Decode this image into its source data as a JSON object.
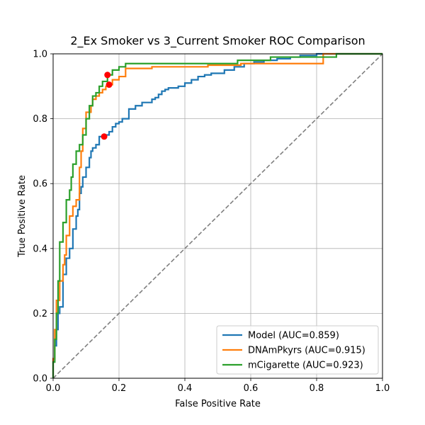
{
  "chart_data": {
    "type": "line",
    "title": "2_Ex Smoker vs 3_Current Smoker ROC Comparison",
    "xlabel": "False Positive Rate",
    "ylabel": "True Positive Rate",
    "xlim": [
      0.0,
      1.0
    ],
    "ylim": [
      0.0,
      1.0
    ],
    "xticks": [
      "0.0",
      "0.2",
      "0.4",
      "0.6",
      "0.8",
      "1.0"
    ],
    "yticks": [
      "0.0",
      "0.2",
      "0.4",
      "0.6",
      "0.8",
      "1.0"
    ],
    "tick_values": [
      0.0,
      0.2,
      0.4,
      0.6,
      0.8,
      1.0
    ],
    "grid": true,
    "legend_position": "lower-right",
    "diagonal": {
      "x": [
        0,
        1
      ],
      "y": [
        0,
        1
      ],
      "color": "#7f7f7f",
      "style": "dashed"
    },
    "series": [
      {
        "name": "Model (AUC=0.859)",
        "color": "#1f77b4",
        "x": [
          0,
          0,
          0.005,
          0.005,
          0.01,
          0.01,
          0.015,
          0.015,
          0.02,
          0.02,
          0.03,
          0.03,
          0.04,
          0.04,
          0.05,
          0.05,
          0.06,
          0.06,
          0.07,
          0.07,
          0.075,
          0.075,
          0.08,
          0.08,
          0.085,
          0.085,
          0.09,
          0.09,
          0.1,
          0.1,
          0.11,
          0.11,
          0.115,
          0.115,
          0.12,
          0.12,
          0.13,
          0.13,
          0.14,
          0.14,
          0.155,
          0.155,
          0.17,
          0.17,
          0.18,
          0.18,
          0.19,
          0.19,
          0.2,
          0.2,
          0.21,
          0.21,
          0.23,
          0.23,
          0.25,
          0.25,
          0.27,
          0.27,
          0.3,
          0.3,
          0.31,
          0.31,
          0.32,
          0.32,
          0.33,
          0.33,
          0.34,
          0.34,
          0.35,
          0.35,
          0.38,
          0.38,
          0.4,
          0.4,
          0.42,
          0.42,
          0.44,
          0.44,
          0.46,
          0.46,
          0.48,
          0.48,
          0.52,
          0.52,
          0.55,
          0.55,
          0.58,
          0.58,
          0.61,
          0.61,
          0.64,
          0.64,
          0.68,
          0.68,
          0.72,
          0.72,
          0.75,
          0.75,
          0.8,
          0.8,
          1.0
        ],
        "y": [
          0,
          0.06,
          0.06,
          0.1,
          0.1,
          0.15,
          0.15,
          0.2,
          0.2,
          0.22,
          0.22,
          0.32,
          0.32,
          0.37,
          0.37,
          0.4,
          0.4,
          0.46,
          0.46,
          0.5,
          0.5,
          0.52,
          0.52,
          0.57,
          0.57,
          0.59,
          0.59,
          0.62,
          0.62,
          0.65,
          0.65,
          0.68,
          0.68,
          0.7,
          0.7,
          0.71,
          0.71,
          0.72,
          0.72,
          0.745,
          0.745,
          0.75,
          0.75,
          0.76,
          0.76,
          0.775,
          0.775,
          0.785,
          0.785,
          0.79,
          0.79,
          0.8,
          0.8,
          0.83,
          0.83,
          0.84,
          0.84,
          0.85,
          0.85,
          0.86,
          0.86,
          0.865,
          0.865,
          0.875,
          0.875,
          0.885,
          0.885,
          0.89,
          0.89,
          0.895,
          0.895,
          0.9,
          0.9,
          0.91,
          0.91,
          0.92,
          0.92,
          0.93,
          0.93,
          0.935,
          0.935,
          0.94,
          0.94,
          0.95,
          0.95,
          0.96,
          0.96,
          0.97,
          0.97,
          0.975,
          0.975,
          0.98,
          0.98,
          0.985,
          0.985,
          0.99,
          0.99,
          0.995,
          0.995,
          1.0,
          1.0
        ]
      },
      {
        "name": "DNAmPkyrs (AUC=0.915)",
        "color": "#ff7f0e",
        "x": [
          0,
          0,
          0.005,
          0.005,
          0.01,
          0.01,
          0.02,
          0.02,
          0.03,
          0.03,
          0.035,
          0.035,
          0.04,
          0.04,
          0.05,
          0.05,
          0.06,
          0.06,
          0.07,
          0.07,
          0.08,
          0.08,
          0.085,
          0.085,
          0.09,
          0.09,
          0.1,
          0.1,
          0.115,
          0.115,
          0.12,
          0.12,
          0.13,
          0.13,
          0.14,
          0.14,
          0.15,
          0.15,
          0.16,
          0.16,
          0.17,
          0.17,
          0.18,
          0.18,
          0.2,
          0.2,
          0.22,
          0.22,
          0.3,
          0.3,
          0.47,
          0.47,
          0.57,
          0.57,
          0.82,
          0.82,
          1.0
        ],
        "y": [
          0,
          0.06,
          0.06,
          0.15,
          0.15,
          0.24,
          0.24,
          0.3,
          0.3,
          0.35,
          0.35,
          0.38,
          0.38,
          0.44,
          0.44,
          0.5,
          0.5,
          0.53,
          0.53,
          0.55,
          0.55,
          0.65,
          0.65,
          0.7,
          0.7,
          0.77,
          0.77,
          0.82,
          0.82,
          0.84,
          0.84,
          0.86,
          0.86,
          0.87,
          0.87,
          0.88,
          0.88,
          0.89,
          0.89,
          0.9,
          0.9,
          0.905,
          0.905,
          0.92,
          0.92,
          0.93,
          0.93,
          0.955,
          0.955,
          0.96,
          0.96,
          0.965,
          0.965,
          0.97,
          0.97,
          1.0,
          1.0
        ]
      },
      {
        "name": "mCigarette (AUC=0.923)",
        "color": "#2ca02c",
        "x": [
          0,
          0,
          0.005,
          0.005,
          0.01,
          0.01,
          0.015,
          0.015,
          0.02,
          0.02,
          0.03,
          0.03,
          0.04,
          0.04,
          0.05,
          0.05,
          0.055,
          0.055,
          0.06,
          0.06,
          0.07,
          0.07,
          0.08,
          0.08,
          0.09,
          0.09,
          0.1,
          0.1,
          0.11,
          0.11,
          0.12,
          0.12,
          0.13,
          0.13,
          0.14,
          0.14,
          0.15,
          0.15,
          0.165,
          0.165,
          0.18,
          0.18,
          0.2,
          0.2,
          0.22,
          0.22,
          0.56,
          0.56,
          0.66,
          0.66,
          0.86,
          0.86,
          1.0
        ],
        "y": [
          0,
          0.05,
          0.05,
          0.12,
          0.12,
          0.2,
          0.2,
          0.3,
          0.3,
          0.42,
          0.42,
          0.48,
          0.48,
          0.55,
          0.55,
          0.58,
          0.58,
          0.62,
          0.62,
          0.66,
          0.66,
          0.7,
          0.7,
          0.72,
          0.72,
          0.75,
          0.75,
          0.8,
          0.8,
          0.84,
          0.84,
          0.87,
          0.87,
          0.88,
          0.88,
          0.9,
          0.9,
          0.915,
          0.915,
          0.935,
          0.935,
          0.95,
          0.95,
          0.96,
          0.96,
          0.97,
          0.97,
          0.98,
          0.98,
          0.99,
          0.99,
          1.0,
          1.0
        ]
      }
    ],
    "markers": [
      {
        "color": "#ff0000",
        "x": 0.155,
        "y": 0.745
      },
      {
        "color": "#ff0000",
        "x": 0.17,
        "y": 0.905
      },
      {
        "color": "#ff0000",
        "x": 0.165,
        "y": 0.935
      }
    ]
  }
}
